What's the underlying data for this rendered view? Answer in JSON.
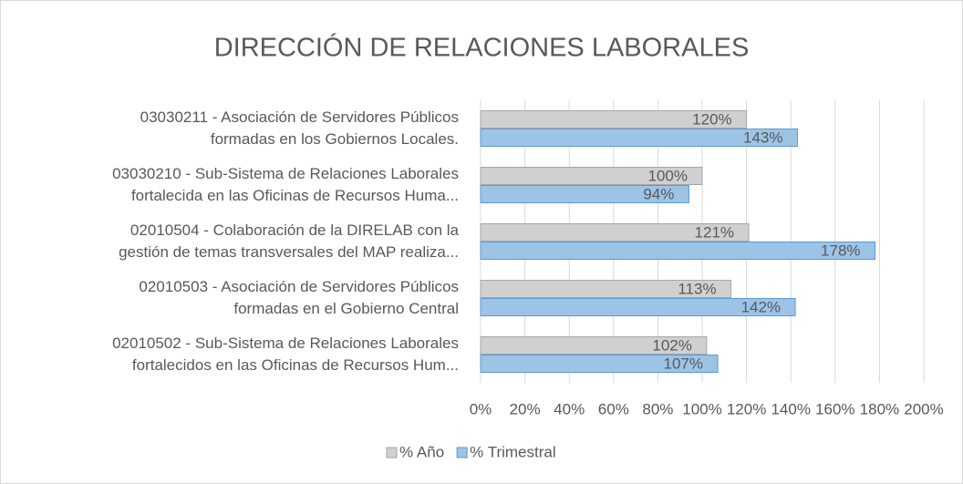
{
  "chart_data": {
    "type": "hbar",
    "title": "DIRECCIÓN DE RELACIONES LABORALES",
    "categories": [
      "03030211 - Asociación de Servidores Públicos\nformadas en los Gobiernos Locales.",
      "03030210 - Sub-Sistema de Relaciones Laborales\nfortalecida en las Oficinas de Recursos Huma...",
      "02010504 - Colaboración de la DIRELAB con la\ngestión de temas transversales del MAP realiza...",
      "02010503 - Asociación de Servidores Públicos\nformadas en el Gobierno Central",
      "02010502 - Sub-Sistema de Relaciones Laborales\nfortalecidos en las Oficinas de Recursos Hum..."
    ],
    "series": [
      {
        "name": "% Año",
        "color": "#d0d0d0",
        "edge": "#a6a6a6",
        "values": [
          120,
          100,
          121,
          113,
          102
        ],
        "value_labels": [
          "120%",
          "100%",
          "121%",
          "113%",
          "102%"
        ]
      },
      {
        "name": "% Trimestral",
        "color": "#9dc3e6",
        "edge": "#5b9bd5",
        "values": [
          143,
          94,
          178,
          142,
          107
        ],
        "value_labels": [
          "143%",
          "94%",
          "178%",
          "142%",
          "107%"
        ]
      }
    ],
    "xlim": [
      0,
      200
    ],
    "xticks": [
      {
        "value": 0,
        "label": "0%"
      },
      {
        "value": 20,
        "label": "20%"
      },
      {
        "value": 40,
        "label": "40%"
      },
      {
        "value": 60,
        "label": "60%"
      },
      {
        "value": 80,
        "label": "80%"
      },
      {
        "value": 100,
        "label": "100%"
      },
      {
        "value": 120,
        "label": "120%"
      },
      {
        "value": 140,
        "label": "140%"
      },
      {
        "value": 160,
        "label": "160%"
      },
      {
        "value": 180,
        "label": "180%"
      },
      {
        "value": 200,
        "label": "200%"
      }
    ],
    "grid": true,
    "legend": "bottom"
  }
}
